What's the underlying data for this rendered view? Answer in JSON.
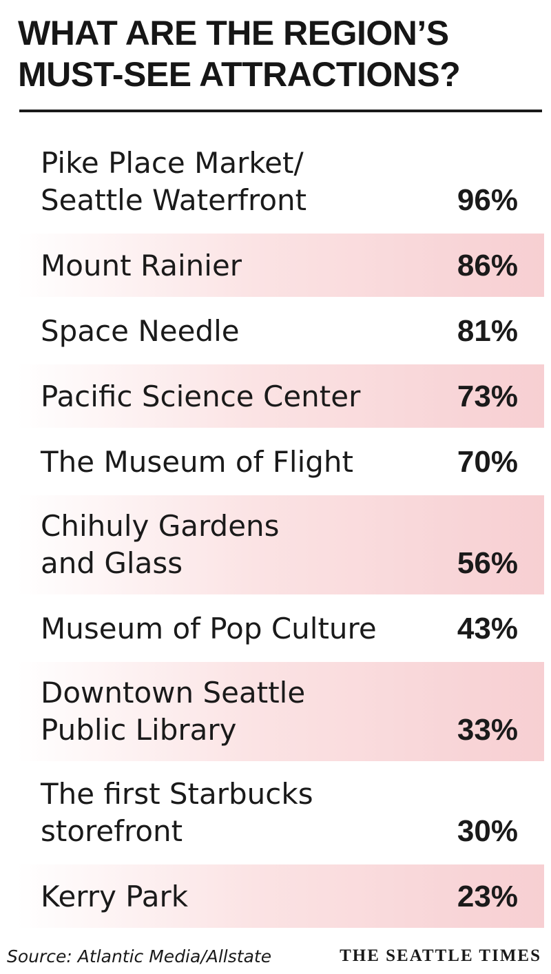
{
  "header": {
    "title": [
      "WHAT ARE THE REGION’S",
      "MUST-SEE ATTRACTIONS?"
    ]
  },
  "table": {
    "rows": [
      {
        "label": [
          "Pike Place Market/",
          "Seattle Waterfront"
        ],
        "value": "96%"
      },
      {
        "label": [
          "Mount Rainier"
        ],
        "value": "86%"
      },
      {
        "label": [
          "Space Needle"
        ],
        "value": "81%"
      },
      {
        "label": [
          "Pacific Science Center"
        ],
        "value": "73%"
      },
      {
        "label": [
          "The Museum of Flight"
        ],
        "value": "70%"
      },
      {
        "label": [
          "Chihuly Gardens",
          "and Glass"
        ],
        "value": "56%"
      },
      {
        "label": [
          "Museum of Pop Culture"
        ],
        "value": "43%"
      },
      {
        "label": [
          "Downtown Seattle",
          "Public Library"
        ],
        "value": "33%"
      },
      {
        "label": [
          "The first Starbucks",
          "storefront"
        ],
        "value": "30%"
      },
      {
        "label": [
          "Kerry Park"
        ],
        "value": "23%"
      }
    ]
  },
  "footer": {
    "source": "Source: Atlantic Media/Allstate",
    "brand": "THE SEATTLE TIMES"
  }
}
